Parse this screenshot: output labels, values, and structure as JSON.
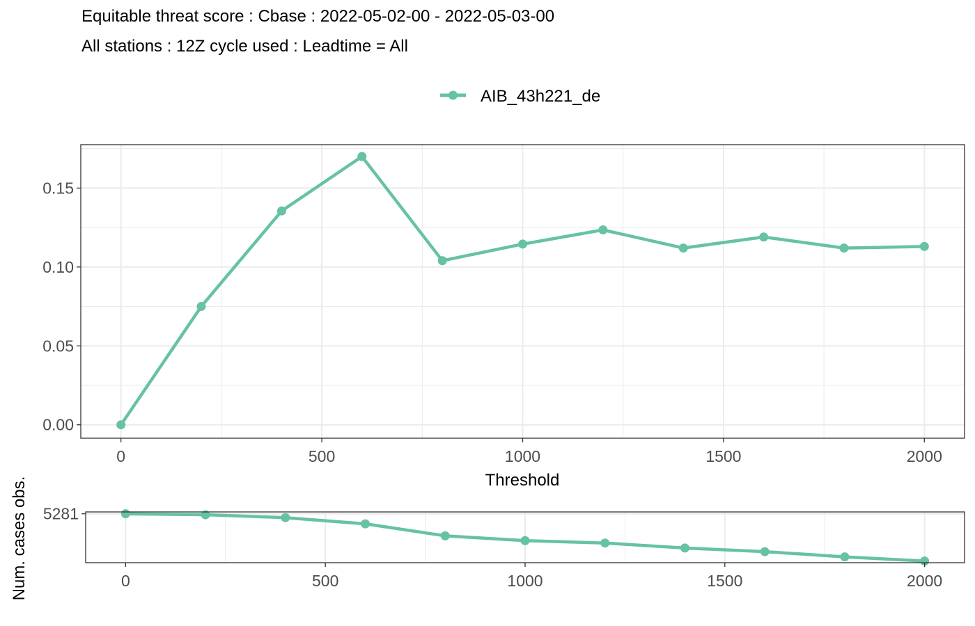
{
  "title": "Equitable threat score : Cbase : 2022-05-02-00 - 2022-05-03-00",
  "subtitle": "All stations : 12Z cycle used : Leadtime = All",
  "colors": {
    "series": "#66c2a5",
    "grid": "#ebebeb",
    "panel_border": "#333333",
    "tick_text": "#4d4d4d"
  },
  "chart_data": [
    {
      "type": "line",
      "title": "",
      "xlabel": "Threshold",
      "ylabel": "",
      "xlim": [
        -100,
        2100
      ],
      "ylim": [
        -0.0085,
        0.1775
      ],
      "x_ticks": [
        0,
        500,
        1000,
        1500,
        2000
      ],
      "x_tick_labels": [
        "0",
        "500",
        "1000",
        "1500",
        "2000"
      ],
      "y_ticks": [
        0.0,
        0.05,
        0.1,
        0.15
      ],
      "y_tick_labels": [
        "0.00",
        "0.05",
        "0.10",
        "0.15"
      ],
      "grid": true,
      "legend": "top",
      "series": [
        {
          "name": "AIB_43h221_de",
          "x": [
            0,
            200,
            400,
            600,
            800,
            1000,
            1200,
            1400,
            1600,
            1800,
            2000
          ],
          "values": [
            0.0,
            0.075,
            0.1355,
            0.17,
            0.104,
            0.1145,
            0.1235,
            0.112,
            0.119,
            0.112,
            0.113
          ]
        }
      ]
    },
    {
      "type": "line",
      "title": "",
      "xlabel": "",
      "ylabel": "Num. cases obs.",
      "xlim": [
        -100,
        2100
      ],
      "ylim": [
        4260,
        5320
      ],
      "x_ticks": [
        0,
        500,
        1000,
        1500,
        2000
      ],
      "x_tick_labels": [
        "0",
        "500",
        "1000",
        "1500",
        "2000"
      ],
      "y_ticks": [
        5281
      ],
      "y_tick_labels": [
        "5281"
      ],
      "grid": true,
      "series": [
        {
          "name": "AIB_43h221_de",
          "x": [
            0,
            200,
            400,
            600,
            800,
            1000,
            1200,
            1400,
            1600,
            1800,
            2000
          ],
          "values": [
            5281,
            5261,
            5201,
            5071,
            4821,
            4721,
            4671,
            4566,
            4491,
            4381,
            4295
          ]
        }
      ]
    }
  ]
}
